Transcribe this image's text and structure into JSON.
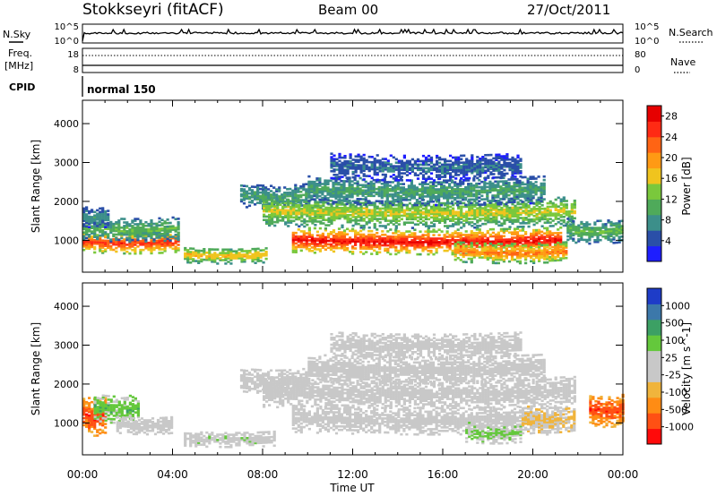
{
  "header": {
    "station": "Stokkseyri (fitACF)",
    "beam": "Beam 00",
    "date": "27/Oct/2011"
  },
  "strip": {
    "nsky_label": "N.Sky",
    "nsky_ticks": [
      "10^5",
      "10^0"
    ],
    "nsearch_label": "N.Search",
    "nsearch_ticks": [
      "10^5",
      "10^0"
    ],
    "freq_label_1": "Freq.",
    "freq_label_2": "[MHz]",
    "freq_ticks": [
      "18",
      "8"
    ],
    "nave_label": "Nave",
    "nave_ticks": [
      "80",
      "0"
    ],
    "cpid_label": "CPID",
    "cpid_value": "normal 150"
  },
  "colors": {
    "power_scale": [
      "#1e1eff",
      "#2a4fa8",
      "#3c8f8a",
      "#4faa5a",
      "#7ac83c",
      "#f0c41e",
      "#ff9a14",
      "#ff6414",
      "#ff2a14",
      "#e60000"
    ],
    "velocity_scale": [
      "#ff0a0a",
      "#ff5014",
      "#ff8c14",
      "#f0b43c",
      "#c8c8c8",
      "#c8c8c8",
      "#64c83c",
      "#3ca064",
      "#3c78aa",
      "#1e3cc8"
    ],
    "ground_scatter": "#bebebe"
  },
  "chart_data": [
    {
      "type": "heatmap",
      "title": "",
      "xlabel": "",
      "ylabel": "Slant Range [km]",
      "x_ticks": [
        "00:00",
        "04:00",
        "08:00",
        "12:00",
        "16:00",
        "20:00",
        "00:00"
      ],
      "x_range_hours": [
        0,
        24
      ],
      "y_ticks": [
        "1000",
        "2000",
        "3000",
        "4000"
      ],
      "ylim": [
        180,
        4600
      ],
      "colorbar_label": "Power [dB]",
      "colorbar_ticks": [
        "4",
        "8",
        "12",
        "16",
        "20",
        "24",
        "28"
      ],
      "colorbar_range": [
        0,
        30
      ],
      "regions": [
        {
          "start": 0.0,
          "end": 4.3,
          "center": 950,
          "width": 260,
          "value": 26
        },
        {
          "start": 0.0,
          "end": 4.3,
          "center": 1300,
          "width": 300,
          "value": 12
        },
        {
          "start": 0.0,
          "end": 1.2,
          "center": 1600,
          "width": 250,
          "value": 8
        },
        {
          "start": 4.5,
          "end": 8.2,
          "center": 620,
          "width": 200,
          "value": 18
        },
        {
          "start": 7.0,
          "end": 10.0,
          "center": 2150,
          "width": 300,
          "value": 10
        },
        {
          "start": 9.3,
          "end": 21.3,
          "center": 1000,
          "width": 320,
          "value": 28
        },
        {
          "start": 8.0,
          "end": 21.8,
          "center": 1750,
          "width": 380,
          "value": 16
        },
        {
          "start": 10.0,
          "end": 20.5,
          "center": 2300,
          "width": 350,
          "value": 10
        },
        {
          "start": 11.0,
          "end": 19.5,
          "center": 2900,
          "width": 320,
          "value": 6
        },
        {
          "start": 16.5,
          "end": 21.5,
          "center": 700,
          "width": 260,
          "value": 22
        },
        {
          "start": 21.5,
          "end": 24.0,
          "center": 1250,
          "width": 300,
          "value": 12
        }
      ]
    },
    {
      "type": "heatmap",
      "title": "",
      "xlabel": "Time UT",
      "ylabel": "Slant Range [km]",
      "x_ticks": [
        "00:00",
        "04:00",
        "08:00",
        "12:00",
        "16:00",
        "20:00",
        "00:00"
      ],
      "x_range_hours": [
        0,
        24
      ],
      "y_ticks": [
        "1000",
        "2000",
        "3000",
        "4000"
      ],
      "ylim": [
        180,
        4600
      ],
      "colorbar_label": "Velocity [m s^-1]",
      "colorbar_ticks": [
        "1000",
        "500",
        "100",
        "25",
        "-25",
        "-100",
        "-500",
        "-1000"
      ],
      "colorbar_range": [
        -1200,
        1200
      ],
      "regions": [
        {
          "start": 0.0,
          "end": 1.0,
          "center": 1200,
          "width": 500,
          "value": -900
        },
        {
          "start": 0.5,
          "end": 2.5,
          "center": 1400,
          "width": 350,
          "value": 400
        },
        {
          "start": 1.5,
          "end": 4.0,
          "center": 950,
          "width": 220,
          "value": 0
        },
        {
          "start": 4.5,
          "end": 8.5,
          "center": 600,
          "width": 200,
          "value": 150
        },
        {
          "start": 7.0,
          "end": 10.0,
          "center": 2100,
          "width": 300,
          "value": 0
        },
        {
          "start": 9.3,
          "end": 21.3,
          "center": 1100,
          "width": 350,
          "value": 0
        },
        {
          "start": 8.0,
          "end": 21.8,
          "center": 1800,
          "width": 400,
          "value": 0
        },
        {
          "start": 10.0,
          "end": 20.5,
          "center": 2400,
          "width": 380,
          "value": 0
        },
        {
          "start": 11.0,
          "end": 19.5,
          "center": 3000,
          "width": 320,
          "value": 0
        },
        {
          "start": 17.0,
          "end": 19.5,
          "center": 750,
          "width": 250,
          "value": 300
        },
        {
          "start": 19.5,
          "end": 21.8,
          "center": 1100,
          "width": 350,
          "value": -300
        },
        {
          "start": 22.5,
          "end": 24.0,
          "center": 1350,
          "width": 400,
          "value": -900
        }
      ]
    }
  ]
}
